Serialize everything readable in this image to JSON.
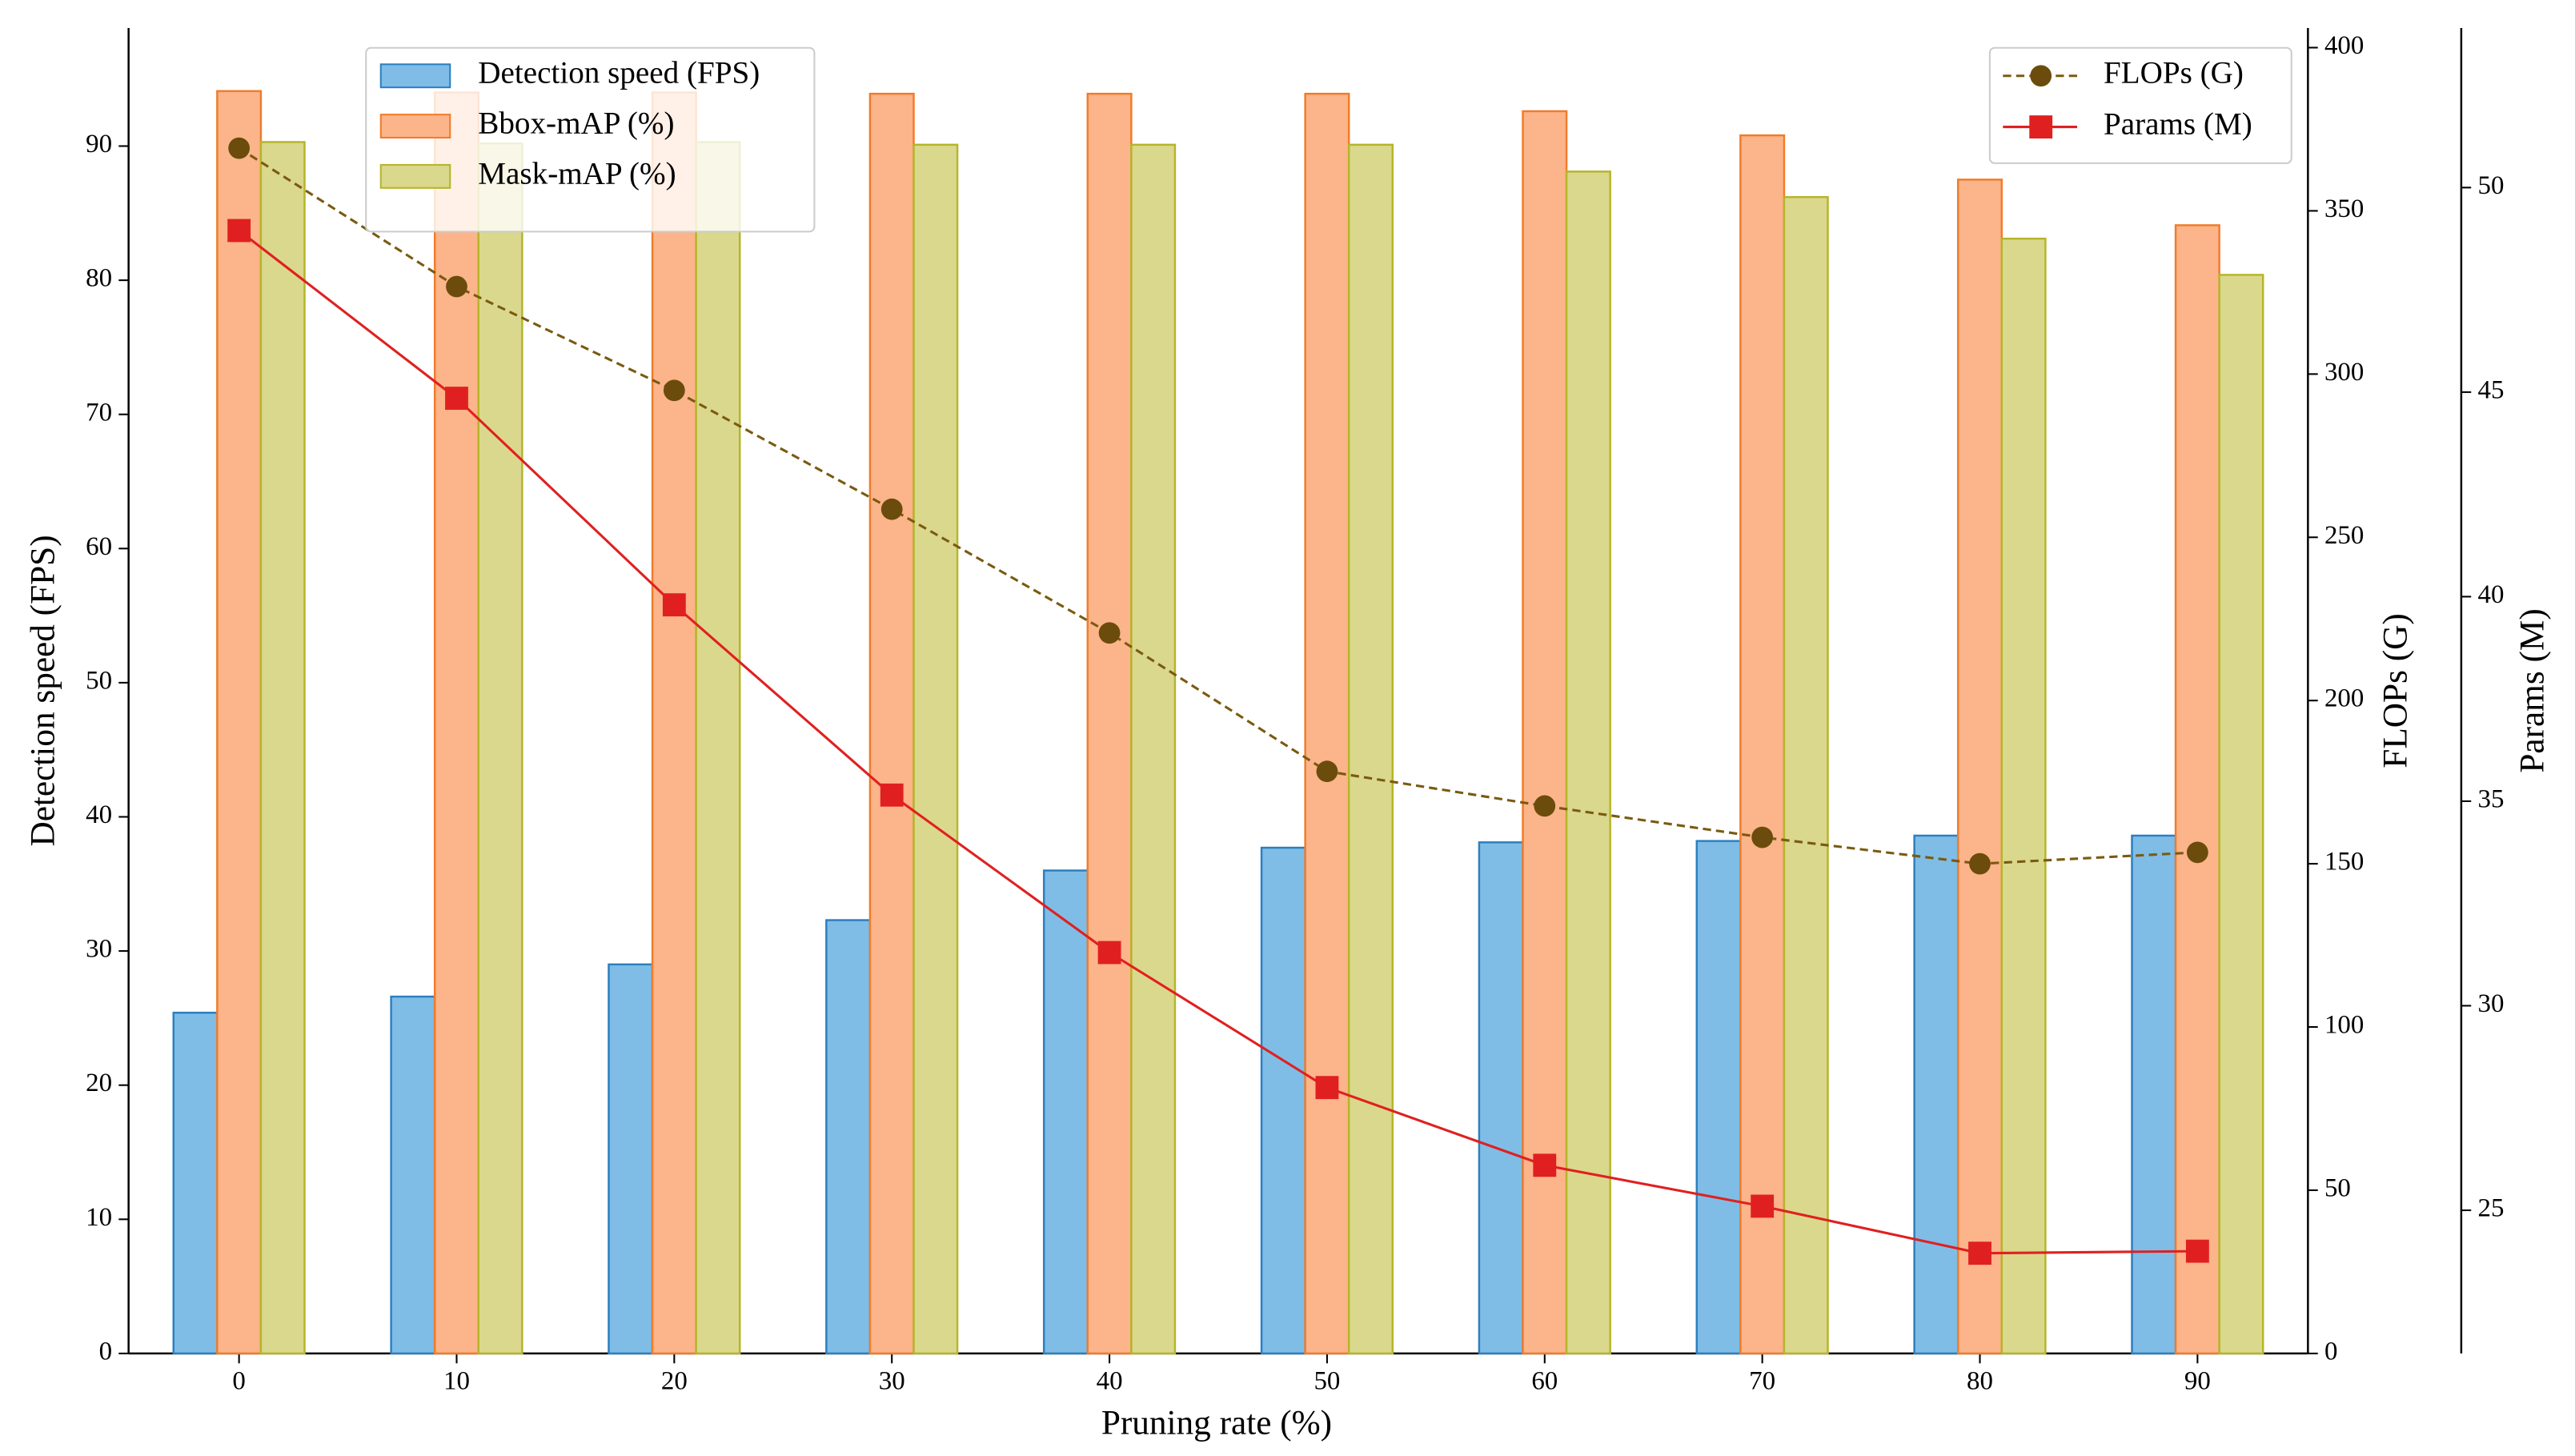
{
  "chart_data": {
    "type": "bar",
    "xlabel": "Pruning rate (%)",
    "ylabel": "Detection  speed (FPS)",
    "y2label": "FLOPs (G)",
    "y3label": "Params (M)",
    "categories": [
      "0",
      "10",
      "20",
      "30",
      "40",
      "50",
      "60",
      "70",
      "80",
      "90"
    ],
    "ylim": [
      0,
      98.8
    ],
    "yticks": [
      0,
      10,
      20,
      30,
      40,
      50,
      60,
      70,
      80,
      90
    ],
    "y2lim": [
      0,
      406
    ],
    "y2ticks": [
      0,
      50,
      100,
      150,
      200,
      250,
      300,
      350,
      400
    ],
    "y3lim": [
      21.5,
      53.9
    ],
    "y3ticks": [
      25,
      30,
      35,
      40,
      45,
      50
    ],
    "series": [
      {
        "name": "Detection speed (FPS)",
        "type": "bar",
        "axis": "y",
        "color": "#7fbde6",
        "edgecolor": "#2c7fc0",
        "values": [
          25.4,
          26.6,
          29.0,
          32.3,
          36.0,
          37.7,
          38.1,
          38.2,
          38.6,
          38.6
        ]
      },
      {
        "name": "Bbox-mAP (%)",
        "type": "bar",
        "axis": "y",
        "color": "#fcb48a",
        "edgecolor": "#f07c2c",
        "values": [
          94.1,
          94.0,
          94.0,
          93.9,
          93.9,
          93.9,
          92.6,
          90.8,
          87.5,
          84.1
        ]
      },
      {
        "name": "Mask-mAP (%)",
        "type": "bar",
        "axis": "y",
        "color": "#dad88c",
        "edgecolor": "#b5b52a",
        "values": [
          90.3,
          90.2,
          90.3,
          90.1,
          90.1,
          90.1,
          88.1,
          86.2,
          83.1,
          80.4
        ]
      },
      {
        "name": "FLOPs (G)",
        "type": "line",
        "axis": "y2",
        "color": "#7a5a10",
        "marker": "circle",
        "linestyle": "dashed",
        "values": [
          369.2,
          326.8,
          295.0,
          258.6,
          220.7,
          178.3,
          167.7,
          158.1,
          150.0,
          153.5
        ]
      },
      {
        "name": "Params (M)",
        "type": "line",
        "axis": "y3",
        "color": "#e02020",
        "marker": "square",
        "linestyle": "solid",
        "values": [
          48.95,
          44.85,
          39.8,
          35.15,
          31.3,
          28.0,
          26.1,
          25.1,
          23.95,
          24.0
        ]
      }
    ]
  }
}
